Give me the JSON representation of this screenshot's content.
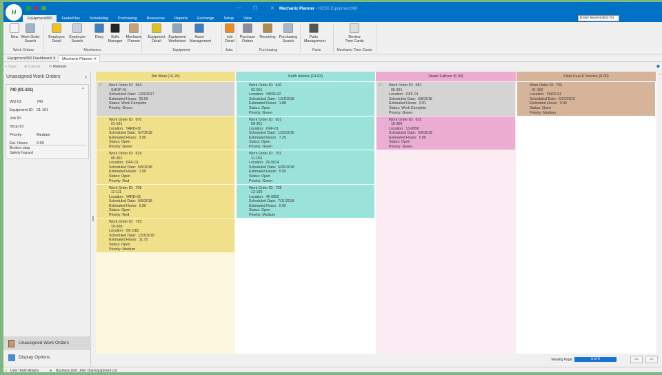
{
  "window": {
    "title": "Mechanic Planner",
    "app": " - HCSS Equipment360",
    "logo": "HCSS"
  },
  "menu_tabs": [
    "Equipment360",
    "FuelerPlus",
    "Scheduling",
    "Purchasing",
    "Resources",
    "Reports",
    "Exchange",
    "Setup",
    "View"
  ],
  "help_placeholder": "Enter keyword(s) for help",
  "ribbon": {
    "buttons": [
      {
        "label": "New",
        "color": "#f4f4f4"
      },
      {
        "label": "Work Order\nSearch",
        "color": "#9fb4c8"
      },
      {
        "label": "Employee\nDetail",
        "color": "#f2c21a"
      },
      {
        "label": "Employee\nSearch",
        "color": "#c9d2da"
      },
      {
        "label": "Diary",
        "color": "#3f7fc4"
      },
      {
        "label": "Skills\nManager",
        "color": "#222"
      },
      {
        "label": "Mechanic\nPlanner",
        "color": "#c8a37a"
      },
      {
        "label": "Equipment\nDetail",
        "color": "#e0c020"
      },
      {
        "label": "Equipment\nWorksheet",
        "color": "#8fa7b8"
      },
      {
        "label": "Asset\nManagement",
        "color": "#3a7ec8"
      },
      {
        "label": "Job\nDetail",
        "color": "#f08a20"
      },
      {
        "label": "Purchase\nOrders",
        "color": "#8a8aa0"
      },
      {
        "label": "Receiving",
        "color": "#b08a50"
      },
      {
        "label": "Purchasing\nSearch",
        "color": "#a8b8c8"
      },
      {
        "label": "Parts\nManagement",
        "color": "#555"
      },
      {
        "label": "Review\nTime Cards",
        "color": "#ddd"
      }
    ],
    "groups": [
      "Work Orders",
      "Mechanics",
      "Equipment",
      "Jobs",
      "Purchasing",
      "Parts",
      "Mechanic Time Cards"
    ]
  },
  "doc_tabs": [
    "Equipment360 Dashboard",
    "Mechanic Planner"
  ],
  "toolbar": {
    "save": "Save",
    "cancel": "Cancel",
    "refresh": "Refresh"
  },
  "left_panel": {
    "title": "Unassigned Work Orders",
    "card_title": "740 (01-101)",
    "fields": [
      {
        "label": "WO ID:",
        "value": "740"
      },
      {
        "label": "Equipment ID:",
        "value": "01-101"
      },
      {
        "label": "Job ID:",
        "value": ""
      },
      {
        "label": "Shop ID:",
        "value": ""
      },
      {
        "label": "Priority:",
        "value": "Medium"
      },
      {
        "label": "Est. Hours:",
        "value": "0.00"
      }
    ],
    "notes": [
      "Broken step",
      "Safety hazard"
    ],
    "nav": [
      "Unassigned Work Orders",
      "Display Options"
    ]
  },
  "columns": [
    {
      "header": "Jim West  (16.25)",
      "color": "#f0e08a",
      "body": "#fdf7e0",
      "cards": [
        {
          "done": true,
          "lines": [
            "Work Order ID:  564",
            "  SHOP-01",
            "Scheduled Date:  1/20/2017",
            "Estimated Hours:  20.00",
            "Status: Work Complete",
            "Priority: Green"
          ]
        },
        {
          "lines": [
            "Work Order ID:  670",
            "  01-101",
            "Location:  YARD-02",
            "Scheduled Date:  6/7/2018",
            "Estimated Hours:  3.00",
            "Status: Open",
            "Priority: Green"
          ]
        },
        {
          "lines": [
            "Work Order ID:  629",
            "  05-301",
            "Location:  OFF-01",
            "Scheduled Date:  6/5/2018",
            "Estimated Hours:  1.50",
            "Status: Open",
            "Priority: Red"
          ]
        },
        {
          "lines": [
            "Work Order ID:  708",
            "  11-111",
            "Location:  YARD-01",
            "Scheduled Date:  6/5/2018",
            "Estimated Hours:  0.00",
            "Status: Open",
            "Priority: Red"
          ]
        },
        {
          "lines": [
            "Work Order ID:  723",
            "  10-300",
            "Location:  09-1182",
            "Scheduled Date:  12/3/2018",
            "Estimated Hours:  11.75",
            "Status: Open",
            "Priority: Medium"
          ]
        }
      ]
    },
    {
      "header": "Keith Adams  (14.63)",
      "color": "#9be3da",
      "body": "#ffffff",
      "cards": [
        {
          "lines": [
            "Work Order ID:  630",
            "  02-001",
            "Location:  YARD-02",
            "Scheduled Date:  1/14/2018",
            "Estimated Hours:  1.88",
            "Status: Open",
            "Priority: Green"
          ]
        },
        {
          "lines": [
            "Work Order ID:  651",
            "  09-301",
            "Location:  OFF-01",
            "Scheduled Date:  1/15/2018",
            "Estimated Hours:  7.25",
            "Status: Open",
            "Priority: Green"
          ]
        },
        {
          "lines": [
            "Work Order ID:  702",
            "  11-103",
            "Location:  20-5024",
            "Scheduled Date:  5/25/2018",
            "Estimated Hours:  5.50",
            "Status: Open",
            "Priority: Green"
          ]
        },
        {
          "lines": [
            "Work Order ID:  728",
            "  12-100",
            "Location:  46-0002",
            "Scheduled Date:  7/11/2018",
            "Estimated Hours:  0.00",
            "Status: Open",
            "Priority: Medium"
          ]
        }
      ]
    },
    {
      "header": "Stuart Falknor  (5.00)",
      "color": "#ecadd3",
      "body": "#fbebf3",
      "cards": [
        {
          "done": true,
          "lines": [
            "Work Order ID:  582",
            "  09-301",
            "Location:  OFF-01",
            "Scheduled Date:  6/8/2018",
            "Estimated Hours:  3.91",
            "Status: Work Complete",
            "Priority: Green"
          ]
        },
        {
          "lines": [
            "Work Order ID:  615",
            "  10-300",
            "Location:  13-8956",
            "Scheduled Date:  6/6/2018",
            "Estimated Hours:  5.00",
            "Status: Open",
            "Priority: Green"
          ]
        }
      ]
    },
    {
      "header": "Fleet Fuel & Service  (0.00)",
      "color": "#d6b49a",
      "body": "#ffffff",
      "cards": [
        {
          "lines": [
            "Work Order ID:  726",
            "  01-102",
            "Location:  YARD-02",
            "Scheduled Date:  6/21/2019",
            "Estimated Hours:  0.00",
            "Status: Open",
            "Priority: Medium"
          ]
        }
      ]
    }
  ],
  "footer": {
    "viewing_label": "Viewing Page:",
    "page": "5 of 6"
  },
  "statusbar": {
    "user": "User: Keith Adams",
    "business_unit": "Business Unit: John Doe Equipment Ltd"
  }
}
